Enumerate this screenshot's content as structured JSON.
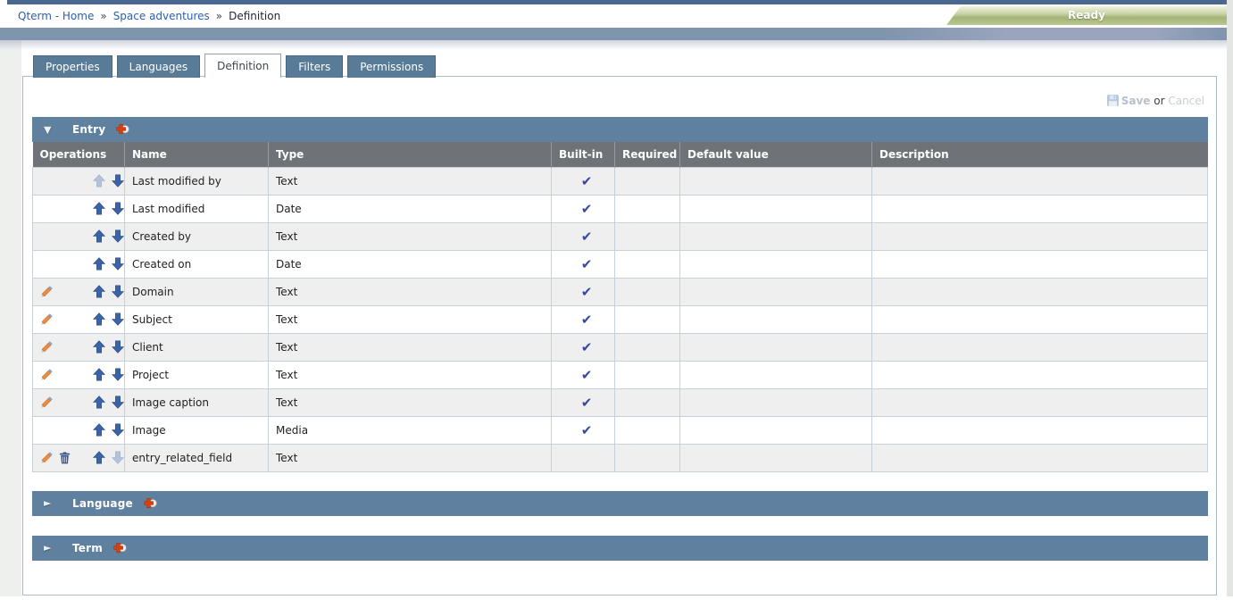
{
  "breadcrumb": {
    "separator": "»",
    "items": [
      {
        "label": "Qterm - Home",
        "link": true
      },
      {
        "label": "Space adventures",
        "link": true
      },
      {
        "label": "Definition",
        "link": false
      }
    ]
  },
  "status_bar": {
    "label": "Ready",
    "color": "#a3b475"
  },
  "tabs": [
    {
      "label": "Properties",
      "active": false
    },
    {
      "label": "Languages",
      "active": false
    },
    {
      "label": "Definition",
      "active": true
    },
    {
      "label": "Filters",
      "active": false
    },
    {
      "label": "Permissions",
      "active": false
    }
  ],
  "toolbar": {
    "save_label": "Save",
    "or_label": "or",
    "cancel_label": "Cancel",
    "save_enabled": false
  },
  "icons": {
    "expanded_glyph": "▼",
    "collapsed_glyph": "►",
    "check_glyph": "✔",
    "names": [
      "floppy-save-icon",
      "add-icon",
      "edit-pencil-icon",
      "delete-trash-icon",
      "move-up-icon",
      "move-down-icon",
      "collapse-triangle-icon"
    ]
  },
  "sections": [
    {
      "id": "entry",
      "title": "Entry",
      "collapsed": false
    },
    {
      "id": "language",
      "title": "Language",
      "collapsed": true
    },
    {
      "id": "term",
      "title": "Term",
      "collapsed": true
    }
  ],
  "entry_table": {
    "columns": [
      "Operations",
      "Name",
      "Type",
      "Built-in",
      "Required",
      "Default value",
      "Description"
    ],
    "rows": [
      {
        "name": "Last modified by",
        "type": "Text",
        "built_in": true,
        "required": "",
        "default_value": "",
        "description": "",
        "operations": {
          "edit": false,
          "delete": false,
          "move_up_enabled": false,
          "move_down_enabled": true
        }
      },
      {
        "name": "Last modified",
        "type": "Date",
        "built_in": true,
        "required": "",
        "default_value": "",
        "description": "",
        "operations": {
          "edit": false,
          "delete": false,
          "move_up_enabled": true,
          "move_down_enabled": true
        }
      },
      {
        "name": "Created by",
        "type": "Text",
        "built_in": true,
        "required": "",
        "default_value": "",
        "description": "",
        "operations": {
          "edit": false,
          "delete": false,
          "move_up_enabled": true,
          "move_down_enabled": true
        }
      },
      {
        "name": "Created on",
        "type": "Date",
        "built_in": true,
        "required": "",
        "default_value": "",
        "description": "",
        "operations": {
          "edit": false,
          "delete": false,
          "move_up_enabled": true,
          "move_down_enabled": true
        }
      },
      {
        "name": "Domain",
        "type": "Text",
        "built_in": true,
        "required": "",
        "default_value": "",
        "description": "",
        "operations": {
          "edit": true,
          "delete": false,
          "move_up_enabled": true,
          "move_down_enabled": true
        }
      },
      {
        "name": "Subject",
        "type": "Text",
        "built_in": true,
        "required": "",
        "default_value": "",
        "description": "",
        "operations": {
          "edit": true,
          "delete": false,
          "move_up_enabled": true,
          "move_down_enabled": true
        }
      },
      {
        "name": "Client",
        "type": "Text",
        "built_in": true,
        "required": "",
        "default_value": "",
        "description": "",
        "operations": {
          "edit": true,
          "delete": false,
          "move_up_enabled": true,
          "move_down_enabled": true
        }
      },
      {
        "name": "Project",
        "type": "Text",
        "built_in": true,
        "required": "",
        "default_value": "",
        "description": "",
        "operations": {
          "edit": true,
          "delete": false,
          "move_up_enabled": true,
          "move_down_enabled": true
        }
      },
      {
        "name": "Image caption",
        "type": "Text",
        "built_in": true,
        "required": "",
        "default_value": "",
        "description": "",
        "operations": {
          "edit": true,
          "delete": false,
          "move_up_enabled": true,
          "move_down_enabled": true
        }
      },
      {
        "name": "Image",
        "type": "Media",
        "built_in": true,
        "required": "",
        "default_value": "",
        "description": "",
        "operations": {
          "edit": false,
          "delete": false,
          "move_up_enabled": true,
          "move_down_enabled": true
        }
      },
      {
        "name": "entry_related_field",
        "type": "Text",
        "built_in": false,
        "required": "",
        "default_value": "",
        "description": "",
        "operations": {
          "edit": true,
          "delete": true,
          "move_up_enabled": true,
          "move_down_enabled": false
        }
      }
    ]
  },
  "colors": {
    "accent_slate": "#60809f",
    "table_header_gray": "#6f7377",
    "link_blue": "#2b5fb0",
    "check_blue": "#3847a0",
    "arrow_blue": "#3b64a8",
    "arrow_disabled": "#b4c2dc",
    "ready_green": "#a3b475",
    "row_alt": "#efefef"
  }
}
